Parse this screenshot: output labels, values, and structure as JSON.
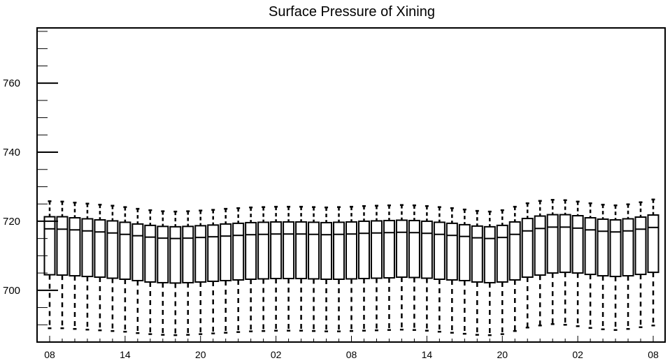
{
  "chart_data": {
    "type": "box",
    "title": "Surface Pressure of Xining",
    "xlabel": "",
    "ylabel": "",
    "ylim": [
      685,
      776
    ],
    "yticks": [
      700,
      720,
      740,
      760
    ],
    "ytick_labels": [
      "700",
      "720",
      "740",
      "760"
    ],
    "xtick_labels": [
      "08",
      "14",
      "20",
      "02",
      "08",
      "14",
      "20",
      "02",
      "08"
    ],
    "xtick_categories": [
      0,
      6,
      12,
      18,
      24,
      30,
      36,
      42,
      48
    ],
    "categories": [
      "08",
      "09",
      "10",
      "11",
      "12",
      "13",
      "14",
      "15",
      "16",
      "17",
      "18",
      "19",
      "20",
      "21",
      "22",
      "23",
      "00",
      "01",
      "02",
      "03",
      "04",
      "05",
      "06",
      "07",
      "08",
      "09",
      "10",
      "11",
      "12",
      "13",
      "14",
      "15",
      "16",
      "17",
      "18",
      "19",
      "20",
      "21",
      "22",
      "23",
      "00",
      "01",
      "02",
      "03",
      "04",
      "05",
      "06",
      "07",
      "08"
    ],
    "series": [
      {
        "q1": [
          704.5,
          704.4,
          704.2,
          704.0,
          703.8,
          703.5,
          703.2,
          702.8,
          702.4,
          702.2,
          702.1,
          702.2,
          702.4,
          702.6,
          702.8,
          703.0,
          703.2,
          703.3,
          703.4,
          703.4,
          703.4,
          703.3,
          703.2,
          703.2,
          703.3,
          703.4,
          703.5,
          703.6,
          703.8,
          703.7,
          703.5,
          703.2,
          703.0,
          702.8,
          702.4,
          702.2,
          702.4,
          703.0,
          703.8,
          704.4,
          705.0,
          705.2,
          705.0,
          704.6,
          704.2,
          704.0,
          704.2,
          704.6,
          705.2
        ],
        "median": [
          717.8,
          717.7,
          717.5,
          717.2,
          716.9,
          716.6,
          716.2,
          715.8,
          715.4,
          715.1,
          715.0,
          715.1,
          715.3,
          715.5,
          715.7,
          715.9,
          716.1,
          716.2,
          716.3,
          716.3,
          716.3,
          716.2,
          716.1,
          716.2,
          716.3,
          716.5,
          716.6,
          716.7,
          716.8,
          716.7,
          716.5,
          716.2,
          715.9,
          715.6,
          715.2,
          715.0,
          715.3,
          716.2,
          717.2,
          717.9,
          718.3,
          718.3,
          718.0,
          717.5,
          717.1,
          716.9,
          717.2,
          717.7,
          718.2
        ],
        "q3": [
          721.3,
          721.3,
          721.0,
          720.7,
          720.4,
          720.1,
          719.7,
          719.2,
          718.8,
          718.5,
          718.4,
          718.5,
          718.7,
          718.9,
          719.2,
          719.4,
          719.6,
          719.7,
          719.8,
          719.8,
          719.8,
          719.7,
          719.6,
          719.7,
          719.8,
          720.0,
          720.1,
          720.2,
          720.3,
          720.2,
          720.0,
          719.7,
          719.4,
          719.0,
          718.6,
          718.4,
          718.8,
          719.8,
          720.8,
          721.5,
          721.9,
          721.9,
          721.6,
          721.0,
          720.6,
          720.4,
          720.7,
          721.2,
          721.8
        ],
        "whisker_high": [
          725.8,
          725.7,
          725.4,
          725.1,
          724.8,
          724.5,
          724.1,
          723.6,
          723.2,
          722.9,
          722.8,
          722.9,
          723.1,
          723.3,
          723.6,
          723.8,
          724.0,
          724.1,
          724.2,
          724.2,
          724.2,
          724.1,
          724.0,
          724.1,
          724.2,
          724.4,
          724.5,
          724.6,
          724.7,
          724.6,
          724.4,
          724.1,
          723.8,
          723.4,
          723.0,
          722.8,
          723.2,
          724.2,
          725.2,
          725.9,
          726.2,
          726.1,
          725.7,
          725.2,
          724.8,
          724.6,
          724.9,
          725.5,
          726.3
        ],
        "whisker_low": [
          689.0,
          689.0,
          688.8,
          688.6,
          688.4,
          688.2,
          688.0,
          687.6,
          687.3,
          687.1,
          687.0,
          687.1,
          687.3,
          687.5,
          687.7,
          687.9,
          688.1,
          688.2,
          688.3,
          688.3,
          688.3,
          688.2,
          688.1,
          688.1,
          688.2,
          688.3,
          688.4,
          688.5,
          688.6,
          688.5,
          688.3,
          688.0,
          687.7,
          687.4,
          687.1,
          687.0,
          687.3,
          688.2,
          689.2,
          689.8,
          690.2,
          690.0,
          689.6,
          689.1,
          688.7,
          688.5,
          688.8,
          689.3,
          689.8
        ]
      }
    ],
    "grid": false,
    "legend": "none"
  }
}
